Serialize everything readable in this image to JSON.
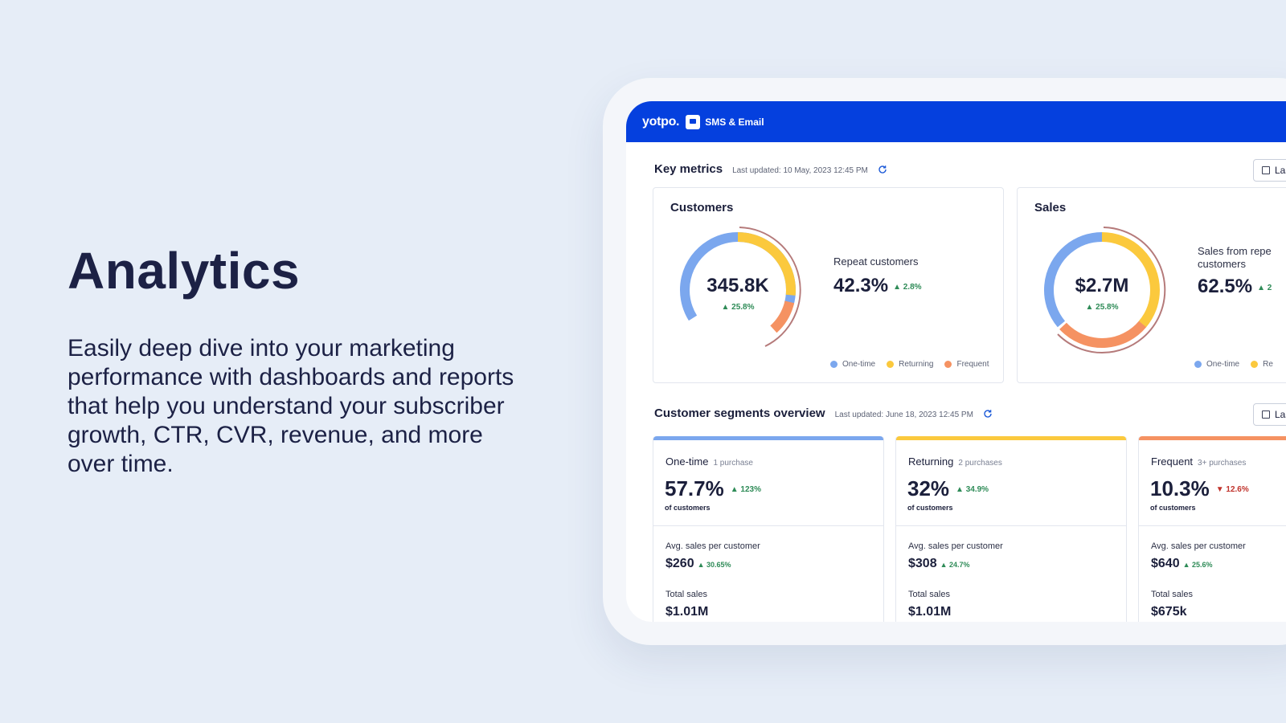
{
  "hero": {
    "title": "Analytics",
    "description": "Easily deep dive into your marketing performance with dashboards and reports that help you understand your subscriber growth, CTR, CVR, revenue, and more over time."
  },
  "app": {
    "logo": "yotpo.",
    "product": "SMS & Email",
    "accent_color": "#0540de"
  },
  "key_metrics": {
    "title": "Key metrics",
    "updated": "Last updated: 10 May, 2023 12:45 PM",
    "date_button": "Las",
    "cards": [
      {
        "title": "Customers",
        "donut_value": "345.8K",
        "donut_change": "▲ 25.8%",
        "metric_label": "Repeat customers",
        "metric_value": "42.3%",
        "metric_change": "▲ 2.8%",
        "legend": [
          "One-time",
          "Returning",
          "Frequent"
        ]
      },
      {
        "title": "Sales",
        "donut_value": "$2.7M",
        "donut_change": "▲ 25.8%",
        "metric_label": "Sales from repe customers",
        "metric_value": "62.5%",
        "metric_change": "▲ 2",
        "legend": [
          "One-time",
          "Re"
        ]
      }
    ]
  },
  "colors": {
    "one_time": "#7ba7ee",
    "returning": "#fbc93d",
    "frequent": "#f59262"
  },
  "segments": {
    "title": "Customer segments overview",
    "updated": "Last updated: June 18, 2023 12:45 PM",
    "date_button": "Las",
    "cards": [
      {
        "name": "One-time",
        "sub": "1 purchase",
        "pct": "57.7%",
        "change": "▲ 123%",
        "of": "of customers",
        "avg_label": "Avg. sales per customer",
        "avg_value": "$260",
        "avg_change": "▲ 30.65%",
        "total_label": "Total sales",
        "total_value": "$1.01M"
      },
      {
        "name": "Returning",
        "sub": "2 purchases",
        "pct": "32%",
        "change": "▲ 34.9%",
        "of": "of customers",
        "avg_label": "Avg. sales per customer",
        "avg_value": "$308",
        "avg_change": "▲ 24.7%",
        "total_label": "Total sales",
        "total_value": "$1.01M"
      },
      {
        "name": "Frequent",
        "sub": "3+ purchases",
        "pct": "10.3%",
        "change": "▼ 12.6%",
        "of": "of customers",
        "avg_label": "Avg. sales per customer",
        "avg_value": "$640",
        "avg_change": "▲ 25.6%",
        "total_label": "Total sales",
        "total_value": "$675k"
      }
    ]
  }
}
